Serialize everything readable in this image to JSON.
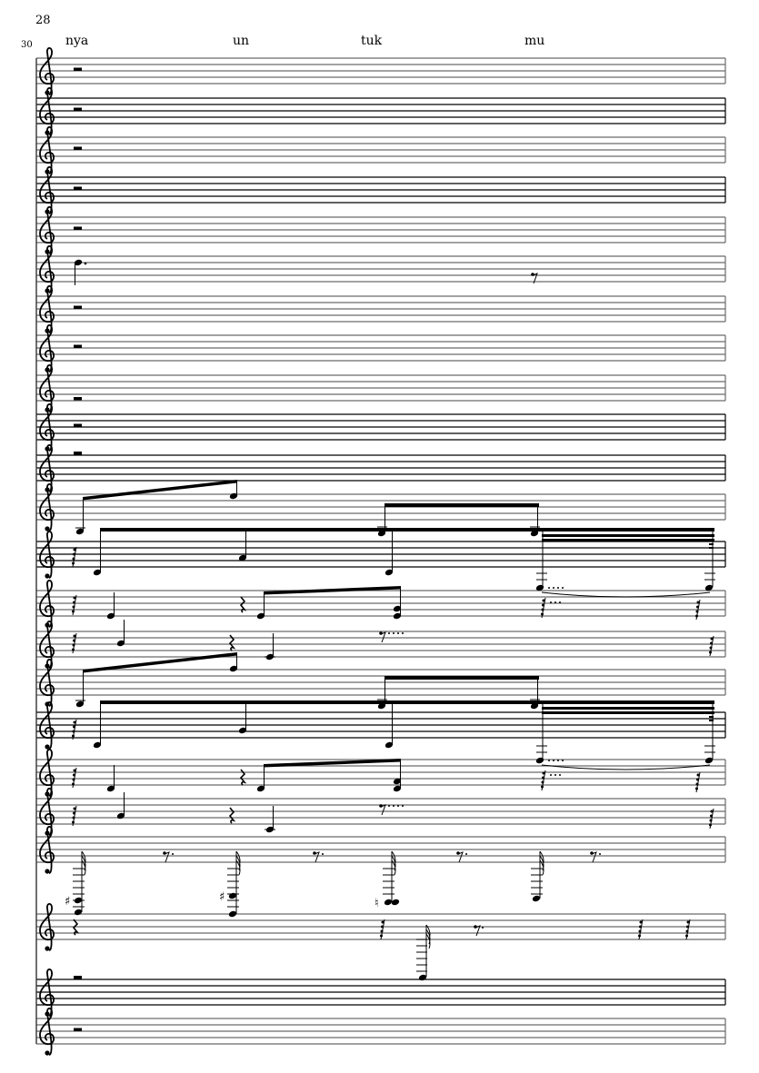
{
  "score": {
    "measure_number_top": "28",
    "measure_number_system": "30",
    "lyrics": [
      "nya",
      "un",
      "tuk",
      "mu"
    ],
    "staff_count": 23,
    "clef": "treble-clef-icon",
    "ink_color": "#000000",
    "staff_line_color": "#6b6b6b"
  }
}
